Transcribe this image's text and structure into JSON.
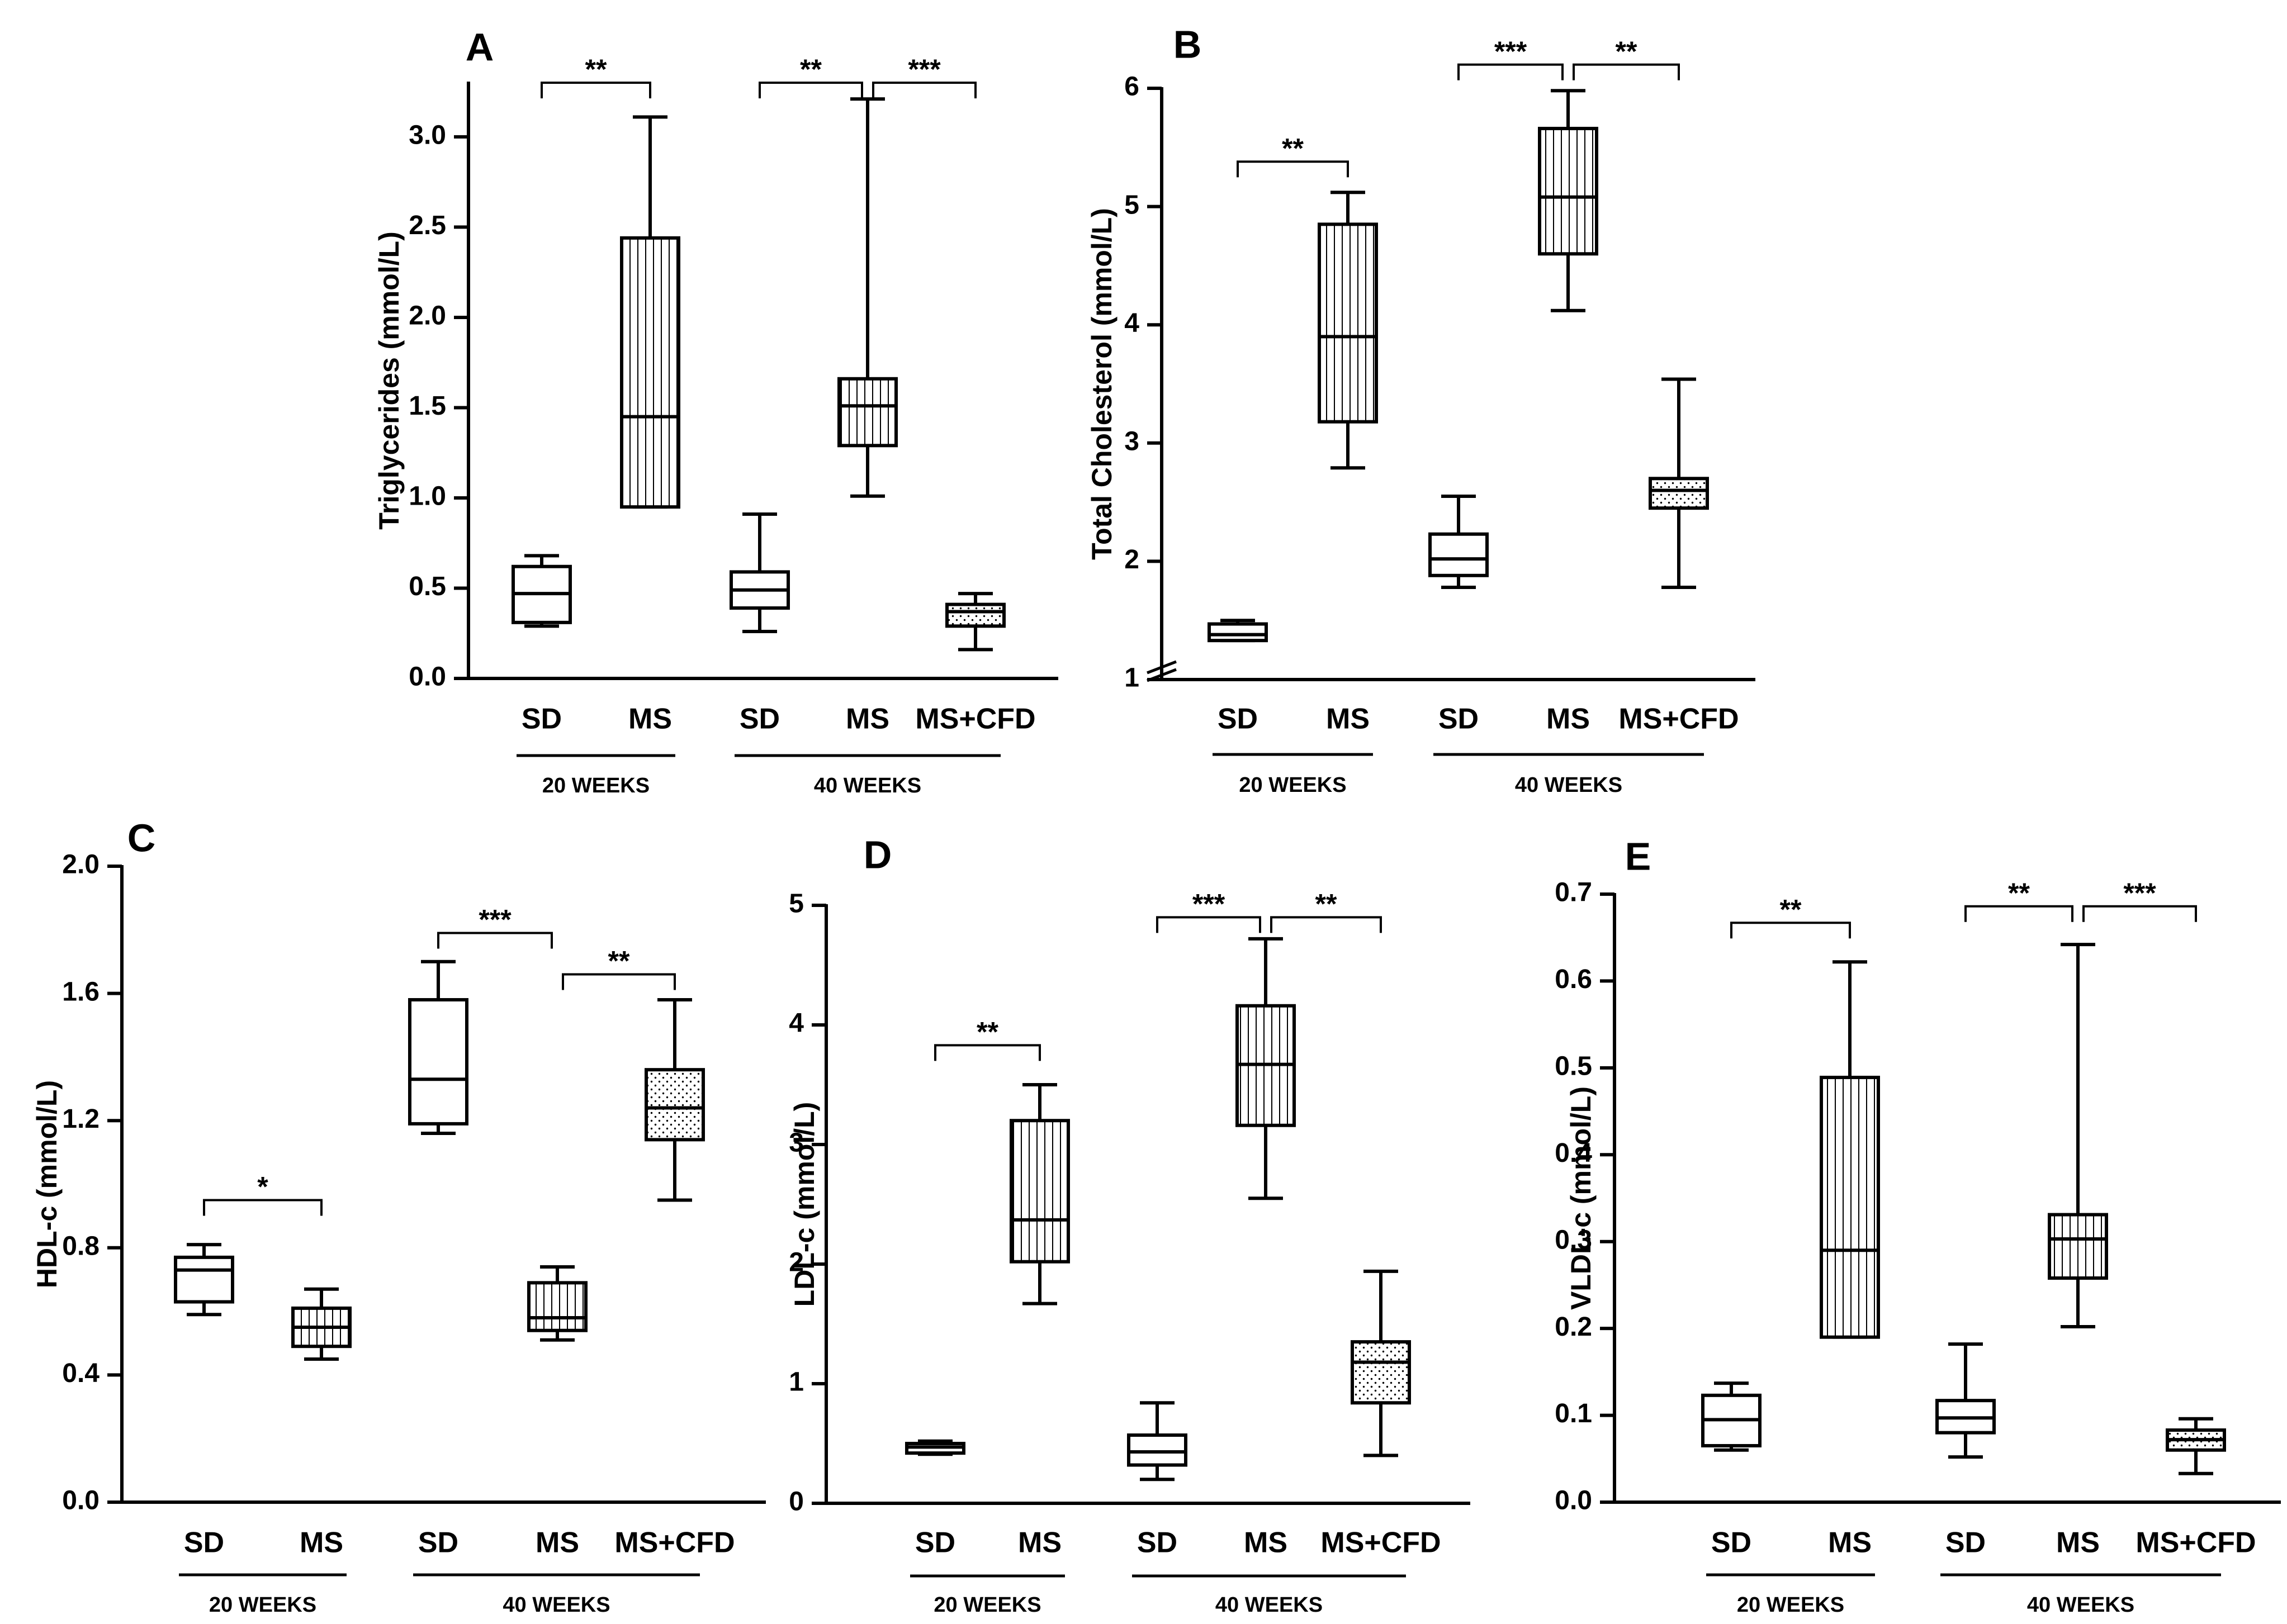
{
  "figure": {
    "panel_count": 5
  },
  "colors": {
    "ink": "#000000",
    "fill": "#ffffff"
  },
  "chart_data": [
    {
      "panel": "A",
      "type": "boxplot",
      "ylabel": "Triglycerides (mmol/L)",
      "ylim": [
        0,
        3.3
      ],
      "yticks": [
        0,
        0.5,
        1.0,
        1.5,
        2.0,
        2.5,
        3.0
      ],
      "ytick_labels": [
        "0.0",
        "0.5",
        "1.0",
        "1.5",
        "2.0",
        "2.5",
        "3.0"
      ],
      "axis_break": false,
      "groups": [
        {
          "label": "SD",
          "pattern": "none",
          "min": 0.29,
          "q1": 0.31,
          "median": 0.47,
          "q3": 0.62,
          "max": 0.68
        },
        {
          "label": "MS",
          "pattern": "vertical",
          "min": 0.95,
          "q1": 0.95,
          "median": 1.45,
          "q3": 2.44,
          "max": 3.11
        },
        {
          "label": "SD",
          "pattern": "none",
          "min": 0.26,
          "q1": 0.39,
          "median": 0.49,
          "q3": 0.59,
          "max": 0.91
        },
        {
          "label": "MS",
          "pattern": "vertical",
          "min": 1.01,
          "q1": 1.29,
          "median": 1.51,
          "q3": 1.66,
          "max": 3.21
        },
        {
          "label": "MS+CFD",
          "pattern": "dots",
          "min": 0.16,
          "q1": 0.29,
          "median": 0.37,
          "q3": 0.41,
          "max": 0.47
        }
      ],
      "periods": [
        {
          "label": "20 WEEKS",
          "from": 0,
          "to": 1
        },
        {
          "label": "40 WEEKS",
          "from": 2,
          "to": 4
        }
      ],
      "significance": [
        {
          "from": 0,
          "to": 1,
          "text": "**",
          "y": 3.3
        },
        {
          "from": 2,
          "to": 3,
          "text": "**",
          "y": 3.3
        },
        {
          "from": 3,
          "to": 4,
          "text": "***",
          "y": 3.3
        }
      ]
    },
    {
      "panel": "B",
      "type": "boxplot",
      "ylabel": "Total Cholesterol (mmol/L)",
      "ylim": [
        1,
        6
      ],
      "yticks": [
        1,
        2,
        3,
        4,
        5,
        6
      ],
      "ytick_labels": [
        "1",
        "2",
        "3",
        "4",
        "5",
        "6"
      ],
      "axis_break": true,
      "groups": [
        {
          "label": "SD",
          "pattern": "none",
          "min": 1.33,
          "q1": 1.33,
          "median": 1.38,
          "q3": 1.47,
          "max": 1.5
        },
        {
          "label": "MS",
          "pattern": "vertical",
          "min": 2.79,
          "q1": 3.18,
          "median": 3.9,
          "q3": 4.85,
          "max": 5.12
        },
        {
          "label": "SD",
          "pattern": "none",
          "min": 1.78,
          "q1": 1.88,
          "median": 2.02,
          "q3": 2.23,
          "max": 2.55
        },
        {
          "label": "MS",
          "pattern": "vertical",
          "min": 4.12,
          "q1": 4.6,
          "median": 5.08,
          "q3": 5.66,
          "max": 5.98
        },
        {
          "label": "MS+CFD",
          "pattern": "dots",
          "min": 1.78,
          "q1": 2.45,
          "median": 2.6,
          "q3": 2.7,
          "max": 3.54
        }
      ],
      "periods": [
        {
          "label": "20 WEEKS",
          "from": 0,
          "to": 1
        },
        {
          "label": "40 WEEKS",
          "from": 2,
          "to": 4
        }
      ],
      "significance": [
        {
          "from": 0,
          "to": 1,
          "text": "**",
          "y": 5.38
        },
        {
          "from": 2,
          "to": 3,
          "text": "***",
          "y": 6.2
        },
        {
          "from": 3,
          "to": 4,
          "text": "**",
          "y": 6.2
        }
      ]
    },
    {
      "panel": "C",
      "type": "boxplot",
      "ylabel": "HDL-c (mmol/L)",
      "ylim": [
        0,
        2.0
      ],
      "yticks": [
        0,
        0.4,
        0.8,
        1.2,
        1.6,
        2.0
      ],
      "ytick_labels": [
        "0.0",
        "0.4",
        "0.8",
        "1.2",
        "1.6",
        "2.0"
      ],
      "axis_break": false,
      "groups": [
        {
          "label": "SD",
          "pattern": "none",
          "min": 0.59,
          "q1": 0.63,
          "median": 0.73,
          "q3": 0.77,
          "max": 0.81
        },
        {
          "label": "MS",
          "pattern": "vertical",
          "min": 0.45,
          "q1": 0.49,
          "median": 0.55,
          "q3": 0.61,
          "max": 0.67
        },
        {
          "label": "SD",
          "pattern": "none",
          "min": 1.16,
          "q1": 1.19,
          "median": 1.33,
          "q3": 1.58,
          "max": 1.7
        },
        {
          "label": "MS",
          "pattern": "vertical",
          "min": 0.51,
          "q1": 0.54,
          "median": 0.58,
          "q3": 0.69,
          "max": 0.74
        },
        {
          "label": "MS+CFD",
          "pattern": "dots",
          "min": 0.95,
          "q1": 1.14,
          "median": 1.24,
          "q3": 1.36,
          "max": 1.58
        }
      ],
      "periods": [
        {
          "label": "20 WEEKS",
          "from": 0,
          "to": 1
        },
        {
          "label": "40 WEEKS",
          "from": 2,
          "to": 4
        }
      ],
      "significance": [
        {
          "from": 0,
          "to": 1,
          "text": "*",
          "y": 0.95
        },
        {
          "from": 2,
          "to": 3,
          "text": "***",
          "y": 1.79
        },
        {
          "from": 3,
          "to": 4,
          "text": "**",
          "y": 1.66
        }
      ]
    },
    {
      "panel": "D",
      "type": "boxplot",
      "ylabel": "LDL-c (mmol/L)",
      "ylim": [
        0,
        5
      ],
      "yticks": [
        0,
        1,
        2,
        3,
        4,
        5
      ],
      "ytick_labels": [
        "0",
        "1",
        "2",
        "3",
        "4",
        "5"
      ],
      "axis_break": false,
      "groups": [
        {
          "label": "SD",
          "pattern": "none",
          "min": 0.41,
          "q1": 0.42,
          "median": 0.47,
          "q3": 0.5,
          "max": 0.52
        },
        {
          "label": "MS",
          "pattern": "vertical",
          "min": 1.67,
          "q1": 2.02,
          "median": 2.37,
          "q3": 3.2,
          "max": 3.5
        },
        {
          "label": "SD",
          "pattern": "none",
          "min": 0.2,
          "q1": 0.32,
          "median": 0.43,
          "q3": 0.57,
          "max": 0.84
        },
        {
          "label": "MS",
          "pattern": "vertical",
          "min": 2.55,
          "q1": 3.16,
          "median": 3.67,
          "q3": 4.16,
          "max": 4.72
        },
        {
          "label": "MS+CFD",
          "pattern": "dots",
          "min": 0.4,
          "q1": 0.84,
          "median": 1.18,
          "q3": 1.35,
          "max": 1.94
        }
      ],
      "periods": [
        {
          "label": "20 WEEKS",
          "from": 0,
          "to": 1
        },
        {
          "label": "40 WEEKS",
          "from": 2,
          "to": 4
        }
      ],
      "significance": [
        {
          "from": 0,
          "to": 1,
          "text": "**",
          "y": 3.83
        },
        {
          "from": 2,
          "to": 3,
          "text": "***",
          "y": 4.9
        },
        {
          "from": 3,
          "to": 4,
          "text": "**",
          "y": 4.9
        }
      ]
    },
    {
      "panel": "E",
      "type": "boxplot",
      "ylabel": "VLDL-c (mmol/L)",
      "ylim": [
        0,
        0.7
      ],
      "yticks": [
        0,
        0.1,
        0.2,
        0.3,
        0.4,
        0.5,
        0.6,
        0.7
      ],
      "ytick_labels": [
        "0.0",
        "0.1",
        "0.2",
        "0.3",
        "0.4",
        "0.5",
        "0.6",
        "0.7"
      ],
      "axis_break": false,
      "groups": [
        {
          "label": "SD",
          "pattern": "none",
          "min": 0.06,
          "q1": 0.065,
          "median": 0.095,
          "q3": 0.123,
          "max": 0.137
        },
        {
          "label": "MS",
          "pattern": "vertical",
          "min": 0.19,
          "q1": 0.19,
          "median": 0.29,
          "q3": 0.489,
          "max": 0.622
        },
        {
          "label": "SD",
          "pattern": "none",
          "min": 0.052,
          "q1": 0.08,
          "median": 0.097,
          "q3": 0.117,
          "max": 0.182
        },
        {
          "label": "MS",
          "pattern": "vertical",
          "min": 0.202,
          "q1": 0.258,
          "median": 0.303,
          "q3": 0.331,
          "max": 0.642
        },
        {
          "label": "MS+CFD",
          "pattern": "dots",
          "min": 0.033,
          "q1": 0.06,
          "median": 0.072,
          "q3": 0.083,
          "max": 0.096
        }
      ],
      "periods": [
        {
          "label": "20 WEEKS",
          "from": 0,
          "to": 1
        },
        {
          "label": "40 WEEKS",
          "from": 2,
          "to": 4
        }
      ],
      "significance": [
        {
          "from": 0,
          "to": 1,
          "text": "**",
          "y": 0.667
        },
        {
          "from": 2,
          "to": 3,
          "text": "**",
          "y": 0.686
        },
        {
          "from": 3,
          "to": 4,
          "text": "***",
          "y": 0.686
        }
      ]
    }
  ]
}
